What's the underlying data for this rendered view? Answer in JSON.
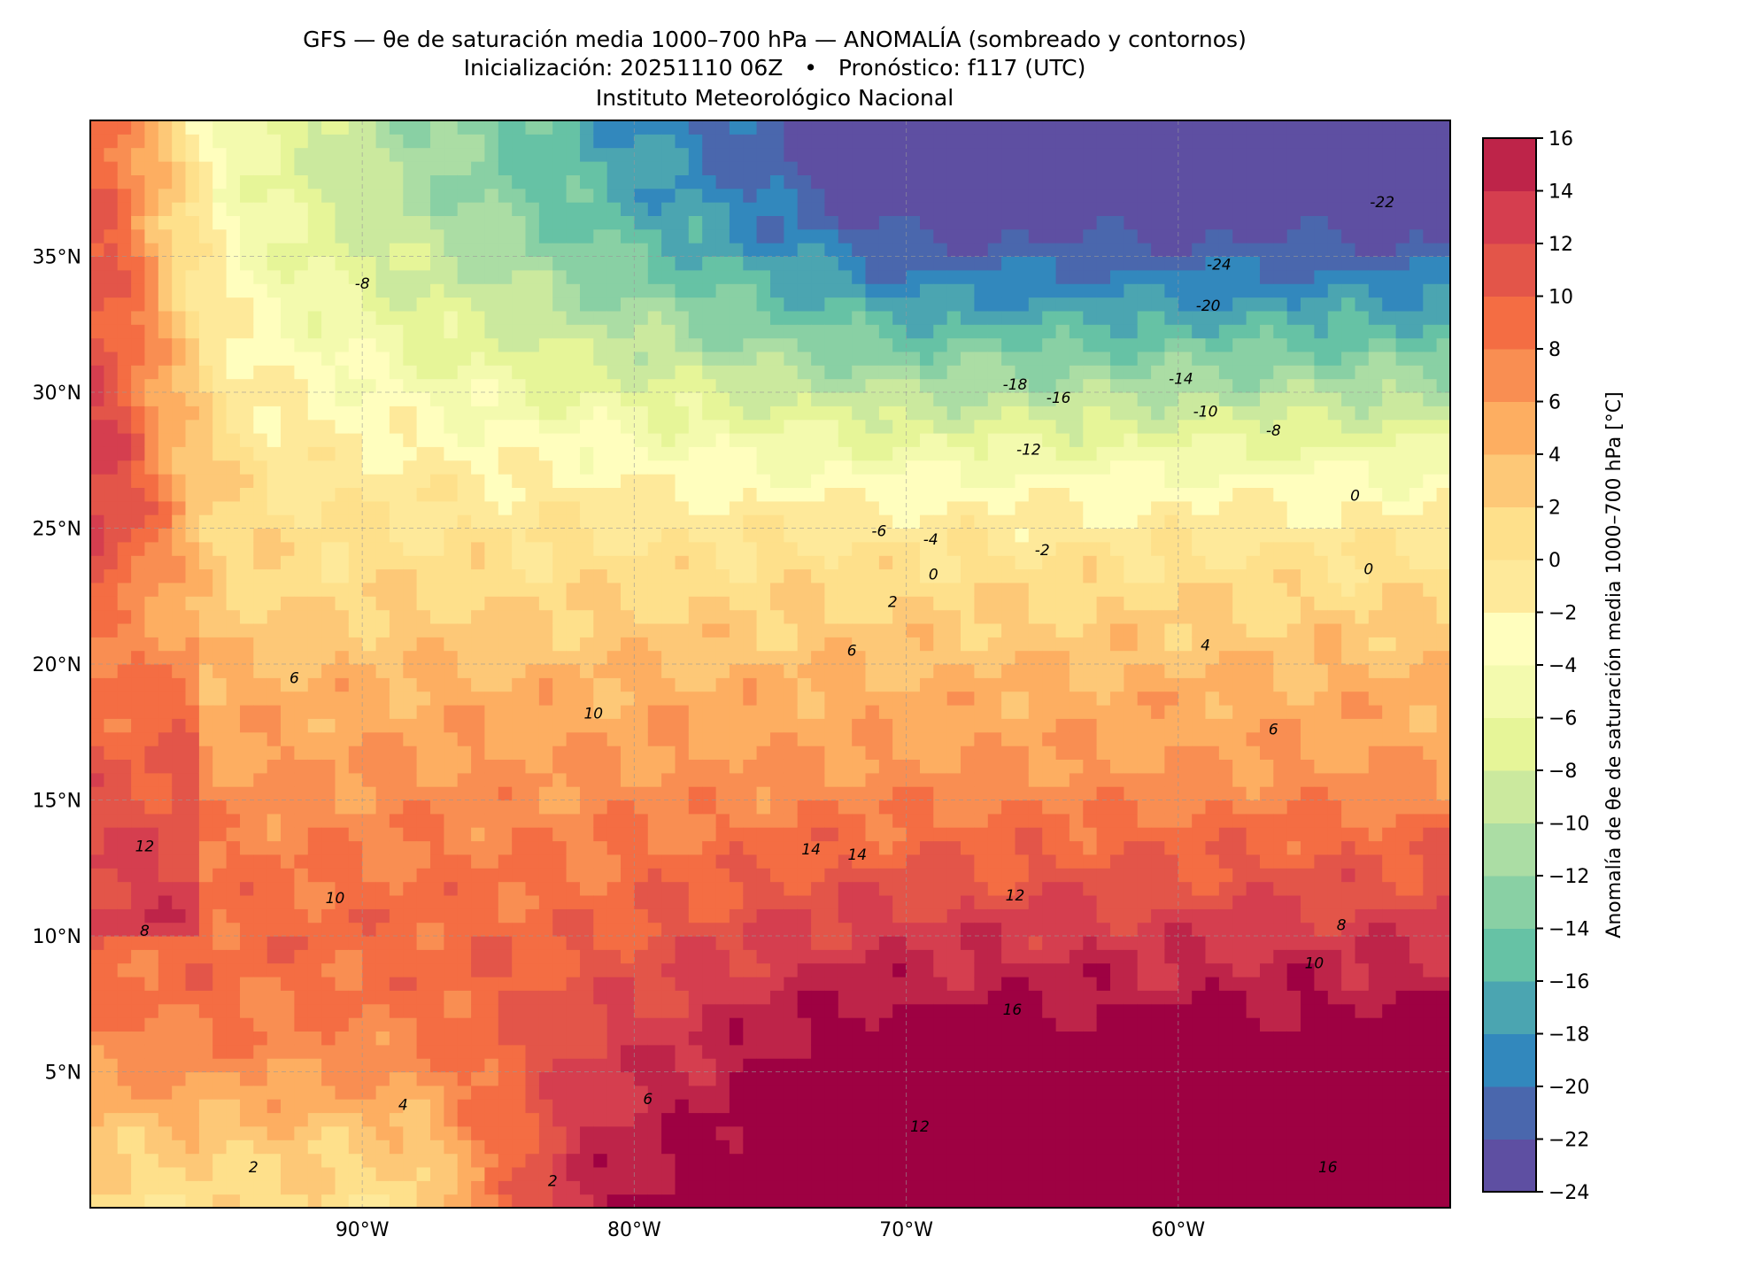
{
  "titles": {
    "line1": "GFS — θe de saturación media 1000–700 hPa — ANOMALÍA (sombreado y contornos)",
    "line2": "Inicialización: 20251110 06Z   •   Pronóstico: f117 (UTC)",
    "line3": "Instituto Meteorológico Nacional"
  },
  "chart_data": {
    "type": "heatmap",
    "title": "GFS — θe de saturación media 1000–700 hPa — ANOMALÍA (sombreado y contornos)",
    "xlim": [
      -100,
      -50
    ],
    "ylim": [
      0,
      40
    ],
    "x_ticks": [
      {
        "value": -90,
        "label": "90°W"
      },
      {
        "value": -80,
        "label": "80°W"
      },
      {
        "value": -70,
        "label": "70°W"
      },
      {
        "value": -60,
        "label": "60°W"
      }
    ],
    "y_ticks": [
      {
        "value": 5,
        "label": "5°N"
      },
      {
        "value": 10,
        "label": "10°N"
      },
      {
        "value": 15,
        "label": "15°N"
      },
      {
        "value": 20,
        "label": "20°N"
      },
      {
        "value": 25,
        "label": "25°N"
      },
      {
        "value": 30,
        "label": "30°N"
      },
      {
        "value": 35,
        "label": "35°N"
      }
    ],
    "grid": true,
    "colorbar": {
      "label": "Anomalía de θe de saturación media 1000–700 hPa [°C]",
      "levels": [
        -24,
        -22,
        -20,
        -18,
        -16,
        -14,
        -12,
        -10,
        -8,
        -6,
        -4,
        -2,
        0,
        2,
        4,
        6,
        8,
        10,
        12,
        14,
        16
      ],
      "colors": [
        "#5e4fa2",
        "#4a67ad",
        "#3288bd",
        "#4ba5b1",
        "#66c2a5",
        "#89d0a4",
        "#abdda4",
        "#cbe99e",
        "#e6f598",
        "#f3faae",
        "#fffebe",
        "#fee99a",
        "#fee08b",
        "#fdc877",
        "#fdae61",
        "#f98e52",
        "#f46d43",
        "#e35549",
        "#d53e4f",
        "#be2449",
        "#9e0142"
      ],
      "tick_labels": [
        "16",
        "14",
        "12",
        "10",
        "8",
        "6",
        "4",
        "2",
        "0",
        "−2",
        "−4",
        "−6",
        "−8",
        "−10",
        "−12",
        "−14",
        "−16",
        "−18",
        "−20",
        "−22",
        "−24"
      ]
    },
    "contour_labels": [
      {
        "lon": -52.5,
        "lat": 37.0,
        "text": "-22"
      },
      {
        "lon": -58.5,
        "lat": 34.7,
        "text": "-24"
      },
      {
        "lon": -58.9,
        "lat": 33.2,
        "text": "-20"
      },
      {
        "lon": -66.0,
        "lat": 30.3,
        "text": "-18"
      },
      {
        "lon": -64.4,
        "lat": 29.8,
        "text": "-16"
      },
      {
        "lon": -59.9,
        "lat": 30.5,
        "text": "-14"
      },
      {
        "lon": -65.5,
        "lat": 27.9,
        "text": "-12"
      },
      {
        "lon": -59.0,
        "lat": 29.3,
        "text": "-10"
      },
      {
        "lon": -56.5,
        "lat": 28.6,
        "text": "-8"
      },
      {
        "lon": -90.0,
        "lat": 34.0,
        "text": "-8"
      },
      {
        "lon": -71.0,
        "lat": 24.9,
        "text": "-6"
      },
      {
        "lon": -69.1,
        "lat": 24.6,
        "text": "-4"
      },
      {
        "lon": -65.0,
        "lat": 24.2,
        "text": "-2"
      },
      {
        "lon": -69.0,
        "lat": 23.3,
        "text": "0"
      },
      {
        "lon": -53.5,
        "lat": 26.2,
        "text": "0"
      },
      {
        "lon": -53.0,
        "lat": 23.5,
        "text": "0"
      },
      {
        "lon": -70.5,
        "lat": 22.3,
        "text": "2"
      },
      {
        "lon": -59.0,
        "lat": 20.7,
        "text": "4"
      },
      {
        "lon": -72.0,
        "lat": 20.5,
        "text": "6"
      },
      {
        "lon": -92.5,
        "lat": 19.5,
        "text": "6"
      },
      {
        "lon": -56.5,
        "lat": 17.6,
        "text": "6"
      },
      {
        "lon": -54.0,
        "lat": 10.4,
        "text": "8"
      },
      {
        "lon": -98.0,
        "lat": 10.2,
        "text": "8"
      },
      {
        "lon": -81.5,
        "lat": 18.2,
        "text": "10"
      },
      {
        "lon": -91.0,
        "lat": 11.4,
        "text": "10"
      },
      {
        "lon": -55.0,
        "lat": 9.0,
        "text": "10"
      },
      {
        "lon": -66.0,
        "lat": 11.5,
        "text": "12"
      },
      {
        "lon": -98.0,
        "lat": 13.3,
        "text": "12"
      },
      {
        "lon": -69.5,
        "lat": 3.0,
        "text": "12"
      },
      {
        "lon": -73.5,
        "lat": 13.2,
        "text": "14"
      },
      {
        "lon": -71.8,
        "lat": 13.0,
        "text": "14"
      },
      {
        "lon": -66.1,
        "lat": 7.3,
        "text": "16"
      },
      {
        "lon": -54.5,
        "lat": 1.5,
        "text": "16"
      },
      {
        "lon": -94.0,
        "lat": 1.5,
        "text": "2"
      },
      {
        "lon": -83.0,
        "lat": 1.0,
        "text": "2"
      },
      {
        "lon": -88.5,
        "lat": 3.8,
        "text": "4"
      },
      {
        "lon": -79.5,
        "lat": 4.0,
        "text": "6"
      }
    ]
  }
}
